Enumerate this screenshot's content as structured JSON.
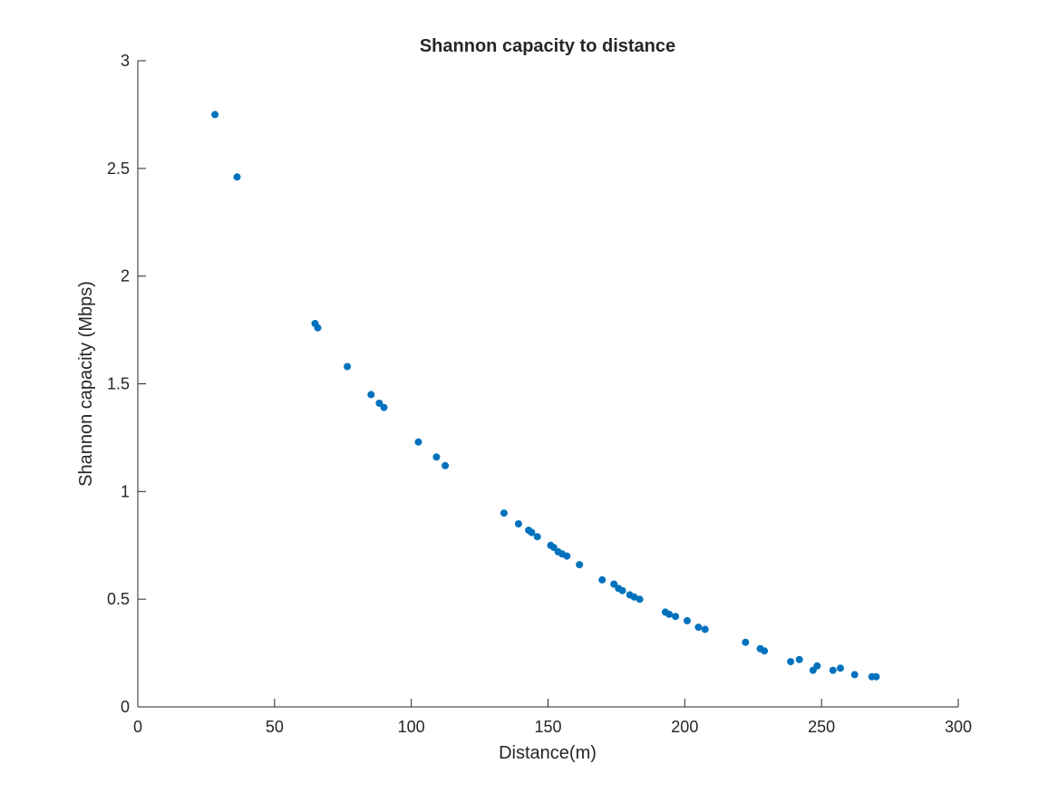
{
  "chart_data": {
    "type": "scatter",
    "title": "Shannon capacity to distance",
    "xlabel": "Distance(m)",
    "ylabel": "Shannon capacity (Mbps)",
    "xlim": [
      0,
      300
    ],
    "ylim": [
      0,
      3
    ],
    "xticks": [
      0,
      50,
      100,
      150,
      200,
      250,
      300
    ],
    "yticks": [
      0,
      0.5,
      1,
      1.5,
      2,
      2.5,
      3
    ],
    "xtick_labels": [
      "0",
      "50",
      "100",
      "150",
      "200",
      "250",
      "300"
    ],
    "ytick_labels": [
      "0",
      "0.5",
      "1",
      "1.5",
      "2",
      "2.5",
      "3"
    ],
    "grid": false,
    "marker_color": "#0072BD",
    "series": [
      {
        "points": [
          [
            28.2,
            2.75
          ],
          [
            36.3,
            2.46
          ],
          [
            64.8,
            1.78
          ],
          [
            65.8,
            1.76
          ],
          [
            76.6,
            1.58
          ],
          [
            85.3,
            1.45
          ],
          [
            88.3,
            1.41
          ],
          [
            90.0,
            1.39
          ],
          [
            102.6,
            1.23
          ],
          [
            109.2,
            1.16
          ],
          [
            112.4,
            1.12
          ],
          [
            133.9,
            0.9
          ],
          [
            139.2,
            0.85
          ],
          [
            142.9,
            0.82
          ],
          [
            144.0,
            0.81
          ],
          [
            146.1,
            0.79
          ],
          [
            151.0,
            0.75
          ],
          [
            152.1,
            0.74
          ],
          [
            153.7,
            0.72
          ],
          [
            155.2,
            0.71
          ],
          [
            156.9,
            0.7
          ],
          [
            161.5,
            0.66
          ],
          [
            169.8,
            0.59
          ],
          [
            174.1,
            0.57
          ],
          [
            175.8,
            0.55
          ],
          [
            177.2,
            0.54
          ],
          [
            179.9,
            0.52
          ],
          [
            181.5,
            0.51
          ],
          [
            183.5,
            0.5
          ],
          [
            192.9,
            0.44
          ],
          [
            194.3,
            0.43
          ],
          [
            196.6,
            0.42
          ],
          [
            200.9,
            0.4
          ],
          [
            205.0,
            0.37
          ],
          [
            207.4,
            0.36
          ],
          [
            222.2,
            0.3
          ],
          [
            227.6,
            0.27
          ],
          [
            229.1,
            0.26
          ],
          [
            238.7,
            0.21
          ],
          [
            241.9,
            0.22
          ],
          [
            246.9,
            0.17
          ],
          [
            248.4,
            0.19
          ],
          [
            254.2,
            0.17
          ],
          [
            256.9,
            0.18
          ],
          [
            262.1,
            0.15
          ],
          [
            268.4,
            0.14
          ],
          [
            270.0,
            0.14
          ]
        ]
      }
    ]
  }
}
